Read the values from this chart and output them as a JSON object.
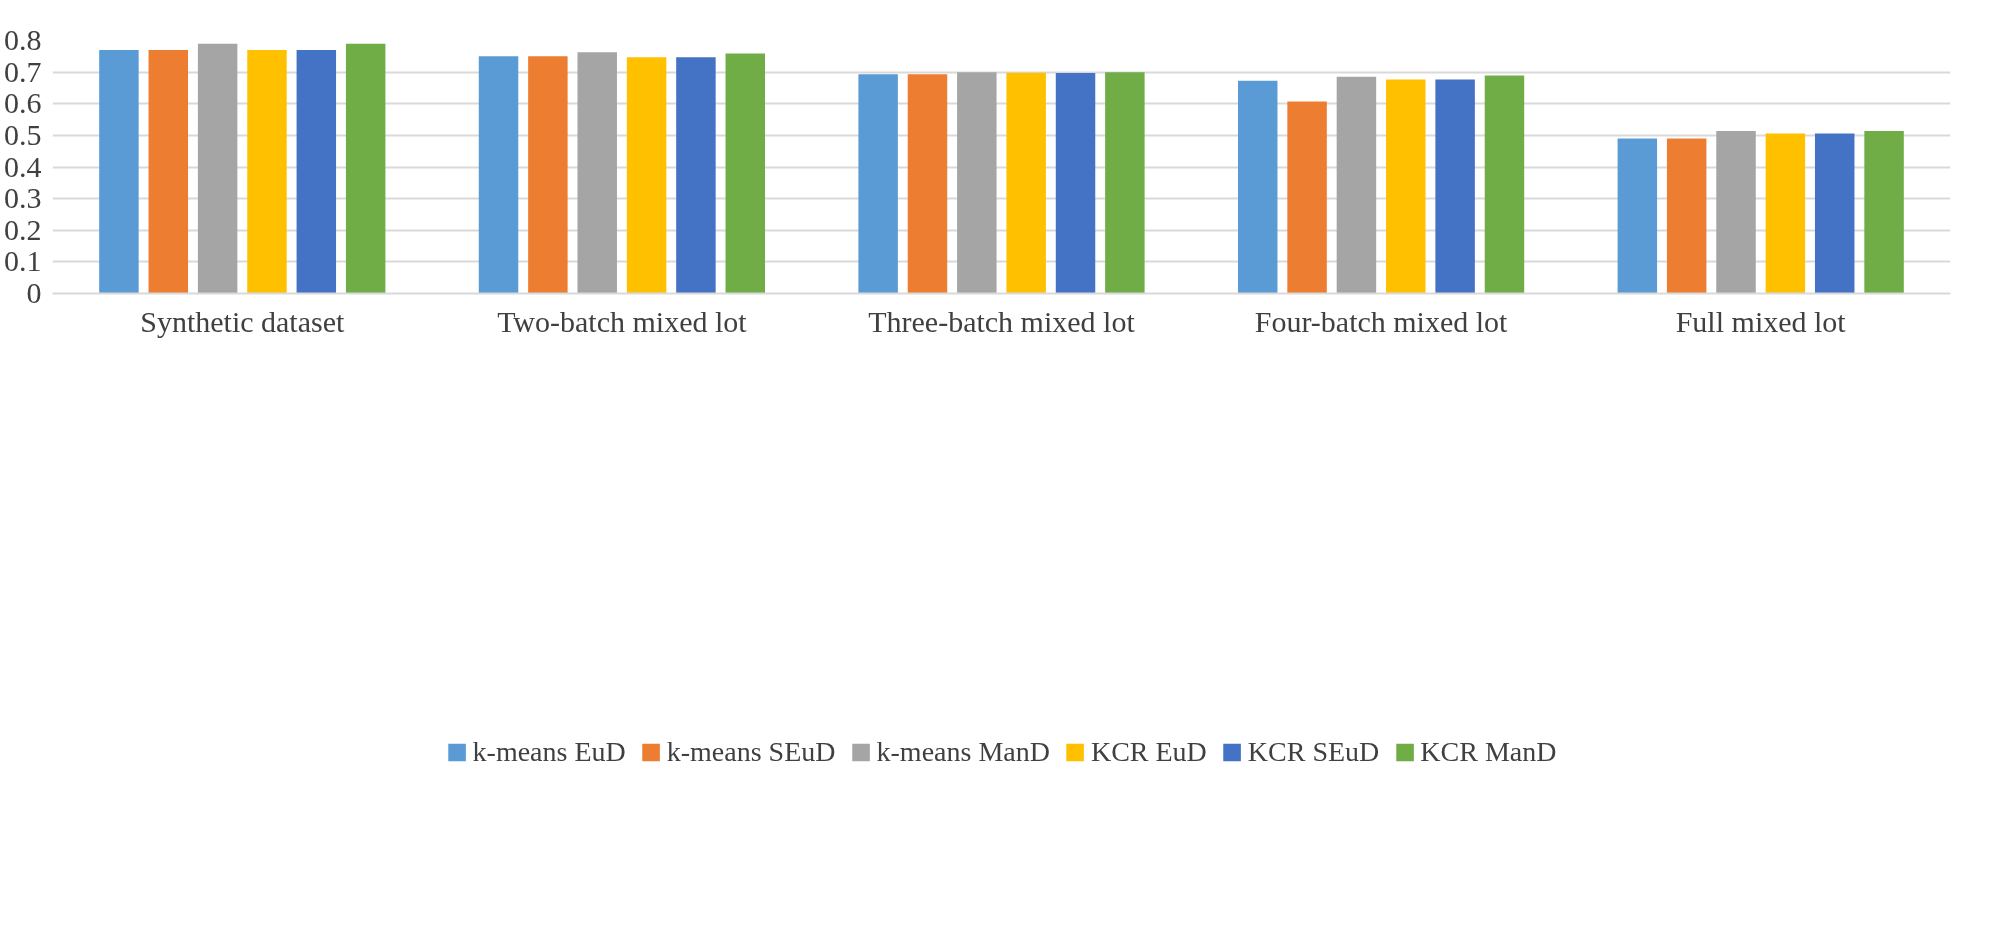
{
  "chart_data": {
    "type": "bar",
    "categories": [
      "Synthetic dataset",
      "Two-batch mixed lot",
      "Three-batch mixed lot",
      "Four-batch mixed lot",
      "Full mixed lot"
    ],
    "series": [
      {
        "name": "k-means EuD",
        "color": "#5b9bd5",
        "values": [
          0.77,
          0.75,
          0.693,
          0.673,
          0.49
        ]
      },
      {
        "name": "k-means SEuD",
        "color": "#ed7d31",
        "values": [
          0.77,
          0.75,
          0.693,
          0.607,
          0.49
        ]
      },
      {
        "name": "k-means ManD",
        "color": "#a5a5a5",
        "values": [
          0.79,
          0.763,
          0.7,
          0.685,
          0.514
        ]
      },
      {
        "name": "KCR EuD",
        "color": "#ffc000",
        "values": [
          0.77,
          0.747,
          0.698,
          0.677,
          0.506
        ]
      },
      {
        "name": "KCR SEuD",
        "color": "#4472c4",
        "values": [
          0.77,
          0.747,
          0.697,
          0.677,
          0.506
        ]
      },
      {
        "name": "KCR ManD",
        "color": "#70ad47",
        "values": [
          0.79,
          0.759,
          0.7,
          0.689,
          0.514
        ]
      }
    ],
    "ylim": [
      0,
      0.8
    ],
    "yticks": [
      0,
      0.1,
      0.2,
      0.3,
      0.4,
      0.5,
      0.6,
      0.7,
      0.8
    ],
    "grid": "y",
    "legend": "bottom"
  }
}
